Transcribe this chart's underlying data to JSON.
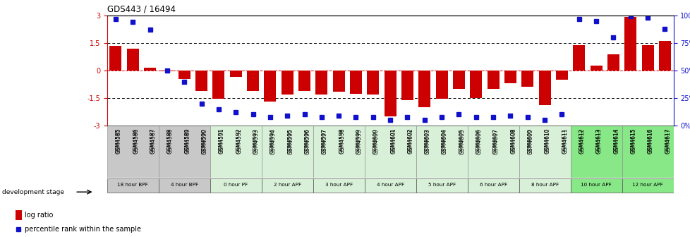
{
  "title": "GDS443 / 16494",
  "samples": [
    "GSM4585",
    "GSM4586",
    "GSM4587",
    "GSM4588",
    "GSM4589",
    "GSM4590",
    "GSM4591",
    "GSM4592",
    "GSM4593",
    "GSM4594",
    "GSM4595",
    "GSM4596",
    "GSM4597",
    "GSM4598",
    "GSM4599",
    "GSM4600",
    "GSM4601",
    "GSM4602",
    "GSM4603",
    "GSM4604",
    "GSM4605",
    "GSM4606",
    "GSM4607",
    "GSM4608",
    "GSM4609",
    "GSM4610",
    "GSM4611",
    "GSM4612",
    "GSM4613",
    "GSM4614",
    "GSM4615",
    "GSM4616",
    "GSM4617"
  ],
  "log_ratio": [
    1.35,
    1.2,
    0.15,
    -0.05,
    -0.45,
    -1.1,
    -1.55,
    -0.35,
    -1.1,
    -1.7,
    -1.3,
    -1.1,
    -1.3,
    -1.15,
    -1.25,
    -1.3,
    -2.5,
    -1.6,
    -2.0,
    -1.55,
    -1.0,
    -1.5,
    -1.0,
    -0.7,
    -0.9,
    -1.9,
    -0.5,
    1.4,
    0.25,
    0.9,
    2.9,
    1.4,
    1.6
  ],
  "percentile": [
    97,
    94,
    87,
    50,
    40,
    20,
    15,
    12,
    10,
    8,
    9,
    10,
    8,
    9,
    8,
    8,
    5,
    8,
    5,
    8,
    10,
    8,
    8,
    9,
    8,
    5,
    10,
    97,
    95,
    80,
    99,
    98,
    88
  ],
  "groups": [
    {
      "label": "18 hour BPF",
      "start": 0,
      "end": 3,
      "color": "#c8c8c8"
    },
    {
      "label": "4 hour BPF",
      "start": 3,
      "end": 6,
      "color": "#c8c8c8"
    },
    {
      "label": "0 hour PF",
      "start": 6,
      "end": 9,
      "color": "#d8f0d8"
    },
    {
      "label": "2 hour APF",
      "start": 9,
      "end": 12,
      "color": "#d8f0d8"
    },
    {
      "label": "3 hour APF",
      "start": 12,
      "end": 15,
      "color": "#d8f0d8"
    },
    {
      "label": "4 hour APF",
      "start": 15,
      "end": 18,
      "color": "#d8f0d8"
    },
    {
      "label": "5 hour APF",
      "start": 18,
      "end": 21,
      "color": "#d8f0d8"
    },
    {
      "label": "6 hour APF",
      "start": 21,
      "end": 24,
      "color": "#d8f0d8"
    },
    {
      "label": "8 hour APF",
      "start": 24,
      "end": 27,
      "color": "#d8f0d8"
    },
    {
      "label": "10 hour APF",
      "start": 27,
      "end": 30,
      "color": "#88e888"
    },
    {
      "label": "12 hour APF",
      "start": 30,
      "end": 33,
      "color": "#88e888"
    }
  ],
  "ylim": [
    -3,
    3
  ],
  "bar_color": "#cc0000",
  "pct_color": "#1111cc",
  "yticks_left": [
    -3,
    -1.5,
    0,
    1.5,
    3
  ],
  "yticks_right_vals": [
    0,
    25,
    50,
    75,
    100
  ],
  "yticks_right_labels": [
    "0%",
    "25%",
    "50%",
    "75%",
    "100%"
  ],
  "hlines_dotted": [
    -1.5,
    1.5
  ],
  "hline_red": 0,
  "bar_width": 0.7,
  "fig_bg": "#ffffff",
  "chart_bg": "#ffffff"
}
